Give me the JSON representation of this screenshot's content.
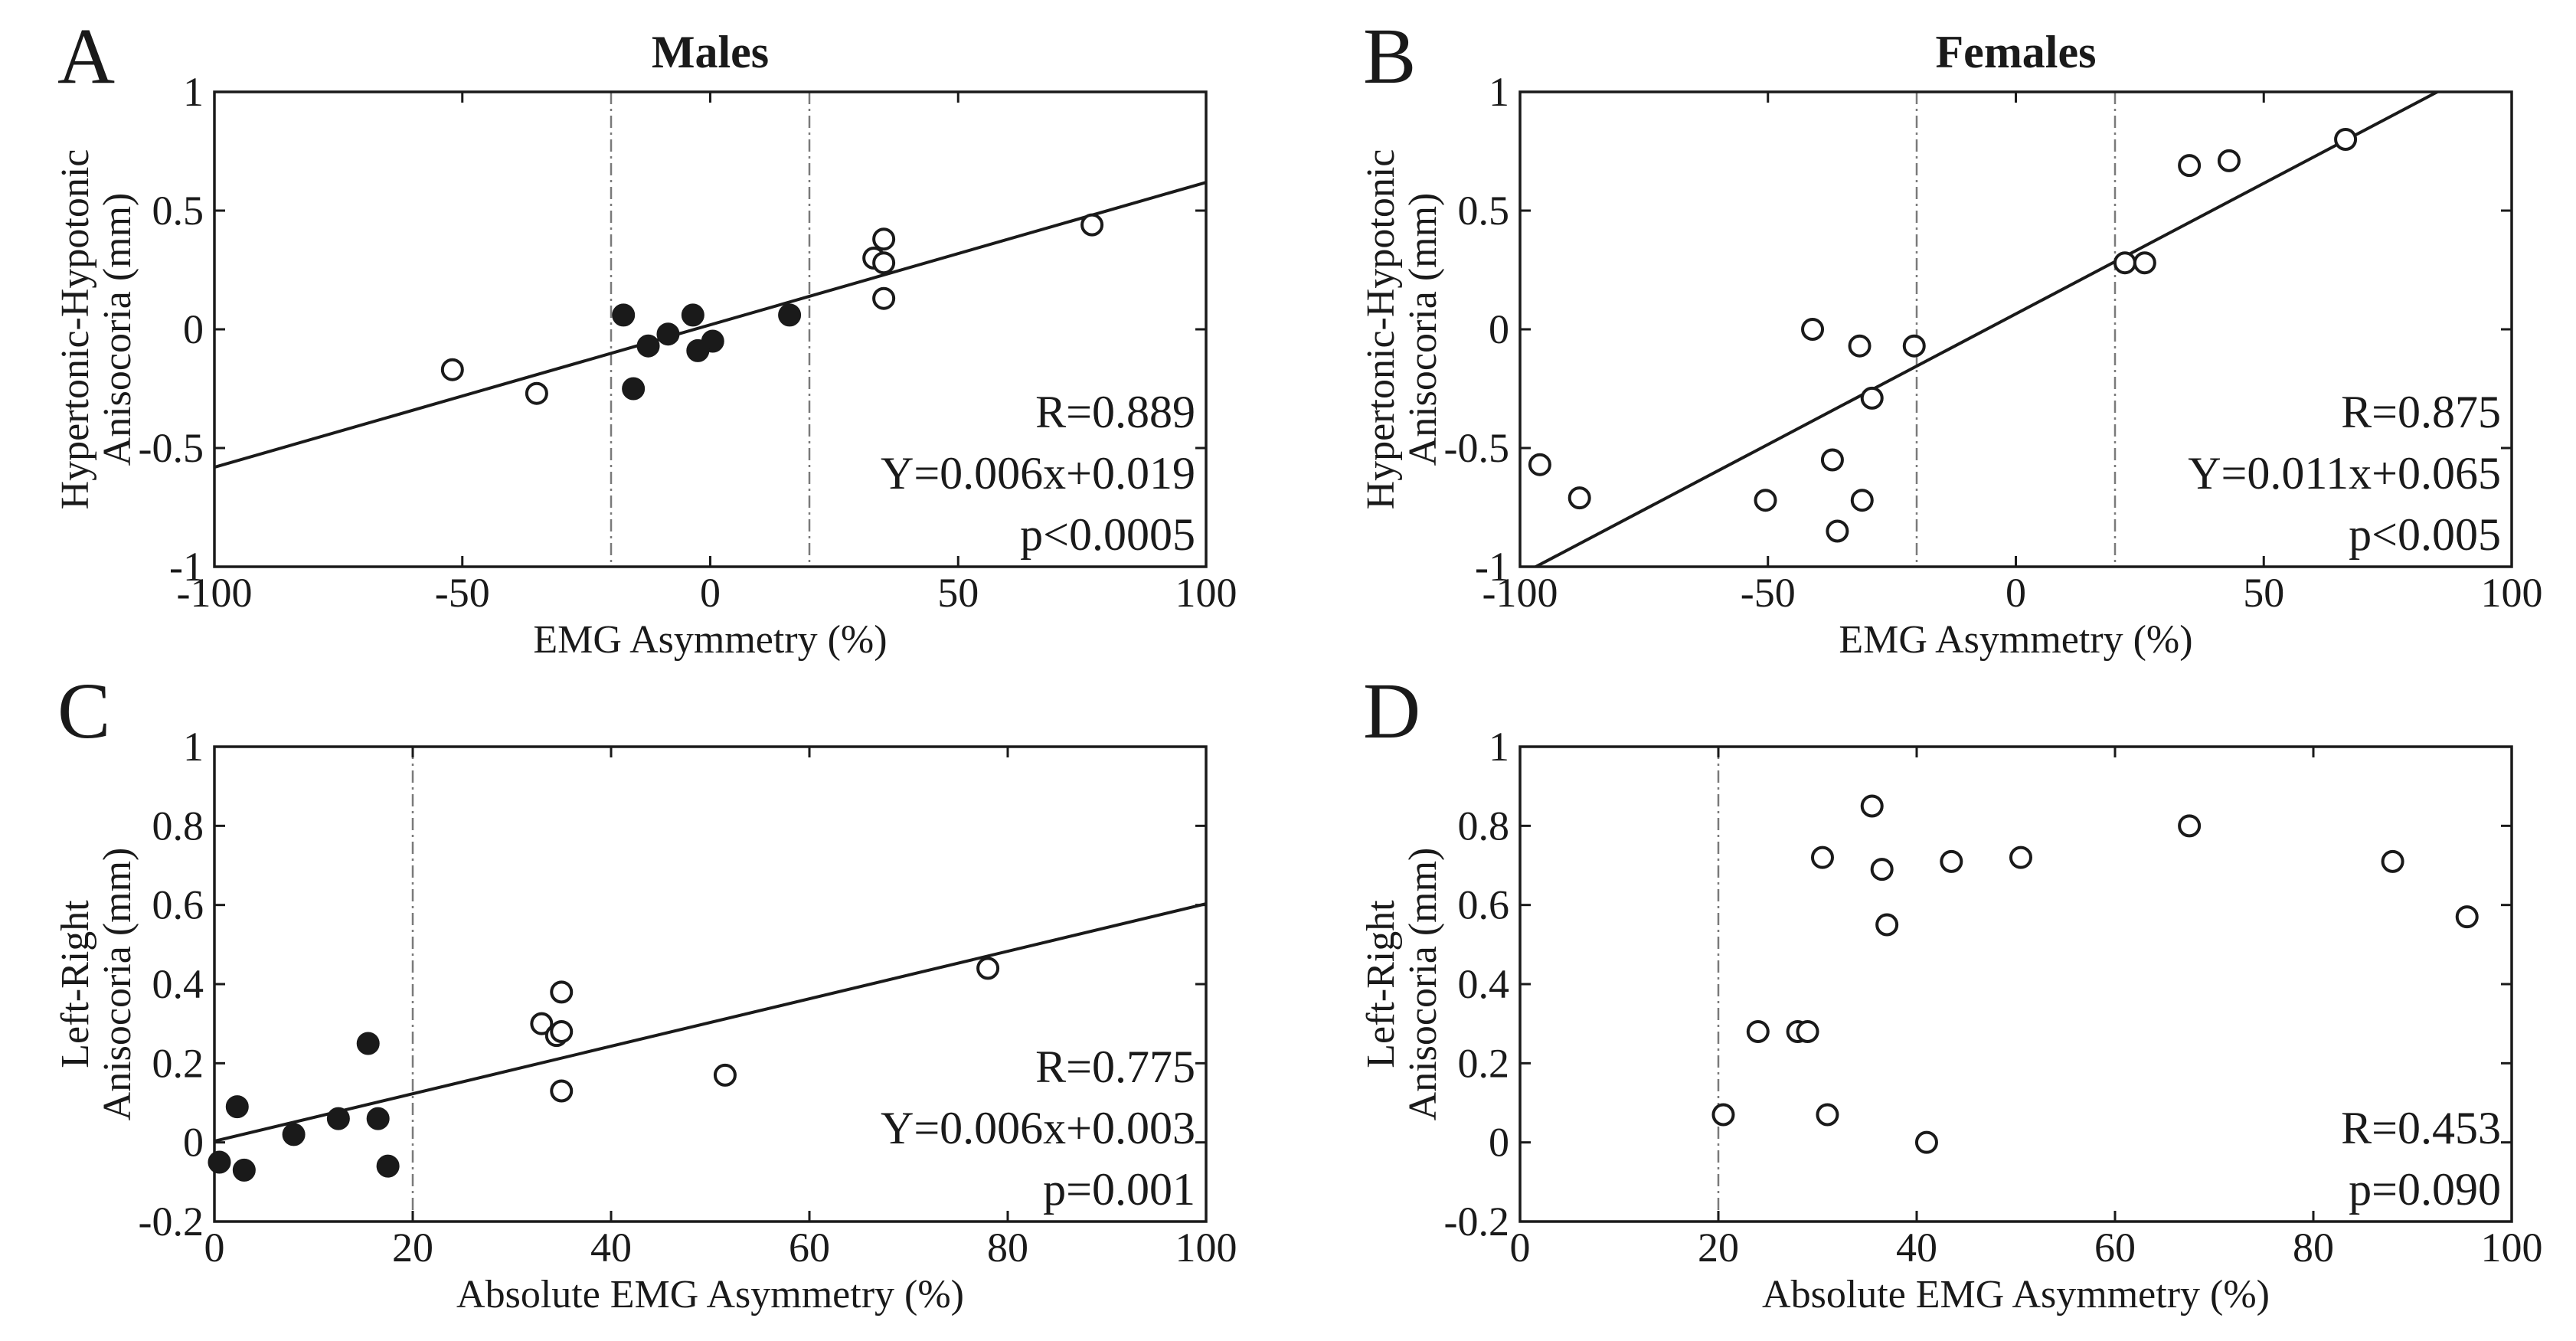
{
  "chart_data": [
    {
      "id": "A",
      "type": "scatter",
      "letter": "A",
      "title": "Males",
      "xlabel": "EMG Asymmetry (%)",
      "ylabel": [
        "Hypertonic-Hypotonic",
        "Anisocoria (mm)"
      ],
      "xlim": [
        -100,
        100
      ],
      "ylim": [
        -1,
        1
      ],
      "xticks": [
        -100,
        -50,
        0,
        50,
        100
      ],
      "xtick_labels": [
        "-100",
        "-50",
        "0",
        "50",
        "100"
      ],
      "yticks": [
        -1,
        -0.5,
        0,
        0.5,
        1
      ],
      "ytick_labels": [
        "-1",
        "-0.5",
        "0",
        "0.5",
        "1"
      ],
      "threshold_lines_x": [
        -20,
        20
      ],
      "fit": {
        "slope": 0.006,
        "intercept": 0.019
      },
      "stats": [
        "R=0.889",
        "Y=0.006x+0.019",
        "p<0.0005"
      ],
      "series": [
        {
          "name": "filled",
          "marker": "filled",
          "points": [
            [
              -17.5,
              0.06
            ],
            [
              -15.5,
              -0.25
            ],
            [
              -12.5,
              -0.07
            ],
            [
              -8.5,
              -0.02
            ],
            [
              -3.5,
              0.06
            ],
            [
              -2.5,
              -0.09
            ],
            [
              0.5,
              -0.05
            ],
            [
              16,
              0.06
            ]
          ]
        },
        {
          "name": "open",
          "marker": "open",
          "points": [
            [
              -52,
              -0.17
            ],
            [
              -35,
              -0.27
            ],
            [
              33,
              0.3
            ],
            [
              35,
              0.38
            ],
            [
              35,
              0.28
            ],
            [
              35,
              0.13
            ],
            [
              77,
              0.44
            ]
          ]
        }
      ]
    },
    {
      "id": "B",
      "type": "scatter",
      "letter": "B",
      "title": "Females",
      "xlabel": "EMG Asymmetry (%)",
      "ylabel": [
        "Hypertonic-Hypotonic",
        "Anisocoria (mm)"
      ],
      "xlim": [
        -100,
        100
      ],
      "ylim": [
        -1,
        1
      ],
      "xticks": [
        -100,
        -50,
        0,
        50,
        100
      ],
      "xtick_labels": [
        "-100",
        "-50",
        "0",
        "50",
        "100"
      ],
      "yticks": [
        -1,
        -0.5,
        0,
        0.5,
        1
      ],
      "ytick_labels": [
        "-1",
        "-0.5",
        "0",
        "0.5",
        "1"
      ],
      "threshold_lines_x": [
        -20,
        20
      ],
      "fit": {
        "slope": 0.011,
        "intercept": 0.065
      },
      "stats": [
        "R=0.875",
        "Y=0.011x+0.065",
        "p<0.005"
      ],
      "series": [
        {
          "name": "open",
          "marker": "open",
          "points": [
            [
              -96,
              -0.57
            ],
            [
              -88,
              -0.71
            ],
            [
              -50.5,
              -0.72
            ],
            [
              -41,
              0.0
            ],
            [
              -37,
              -0.55
            ],
            [
              -36,
              -0.85
            ],
            [
              -31.5,
              -0.07
            ],
            [
              -31,
              -0.72
            ],
            [
              -29,
              -0.29
            ],
            [
              -20.5,
              -0.07
            ],
            [
              22,
              0.28
            ],
            [
              26,
              0.28
            ],
            [
              35,
              0.69
            ],
            [
              43,
              0.71
            ],
            [
              66.5,
              0.8
            ]
          ]
        }
      ]
    },
    {
      "id": "C",
      "type": "scatter",
      "letter": "C",
      "title": "",
      "xlabel": "Absolute EMG Asymmetry (%)",
      "ylabel": [
        "Left-Right",
        "Anisocoria (mm)"
      ],
      "xlim": [
        0,
        100
      ],
      "ylim": [
        -0.2,
        1
      ],
      "xticks": [
        0,
        20,
        40,
        60,
        80,
        100
      ],
      "xtick_labels": [
        "0",
        "20",
        "40",
        "60",
        "80",
        "100"
      ],
      "yticks": [
        -0.2,
        0,
        0.2,
        0.4,
        0.6,
        0.8,
        1
      ],
      "ytick_labels": [
        "-0.2",
        "0",
        "0.2",
        "0.4",
        "0.6",
        "0.8",
        "1"
      ],
      "threshold_lines_x": [
        20
      ],
      "fit": {
        "slope": 0.006,
        "intercept": 0.003
      },
      "stats": [
        "R=0.775",
        "Y=0.006x+0.003",
        "p=0.001"
      ],
      "series": [
        {
          "name": "filled",
          "marker": "filled",
          "points": [
            [
              0.5,
              -0.05
            ],
            [
              2.3,
              0.09
            ],
            [
              3,
              -0.07
            ],
            [
              8,
              0.02
            ],
            [
              12.5,
              0.06
            ],
            [
              15.5,
              0.25
            ],
            [
              16.5,
              0.06
            ],
            [
              17.5,
              -0.06
            ]
          ]
        },
        {
          "name": "open",
          "marker": "open",
          "points": [
            [
              33,
              0.3
            ],
            [
              34.5,
              0.27
            ],
            [
              35,
              0.28
            ],
            [
              35,
              0.38
            ],
            [
              35,
              0.13
            ],
            [
              51.5,
              0.17
            ],
            [
              78,
              0.44
            ]
          ]
        }
      ]
    },
    {
      "id": "D",
      "type": "scatter",
      "letter": "D",
      "title": "",
      "xlabel": "Absolute EMG Asymmetry (%)",
      "ylabel": [
        "Left-Right",
        "Anisocoria (mm)"
      ],
      "xlim": [
        0,
        100
      ],
      "ylim": [
        -0.2,
        1
      ],
      "xticks": [
        0,
        20,
        40,
        60,
        80,
        100
      ],
      "xtick_labels": [
        "0",
        "20",
        "40",
        "60",
        "80",
        "100"
      ],
      "yticks": [
        -0.2,
        0,
        0.2,
        0.4,
        0.6,
        0.8,
        1
      ],
      "ytick_labels": [
        "-0.2",
        "0",
        "0.2",
        "0.4",
        "0.6",
        "0.8",
        "1"
      ],
      "threshold_lines_x": [
        20
      ],
      "fit": null,
      "stats": [
        "R=0.453",
        "p=0.090"
      ],
      "series": [
        {
          "name": "open",
          "marker": "open",
          "points": [
            [
              20.5,
              0.07
            ],
            [
              24,
              0.28
            ],
            [
              28,
              0.28
            ],
            [
              29,
              0.28
            ],
            [
              30.5,
              0.72
            ],
            [
              31,
              0.07
            ],
            [
              35.5,
              0.85
            ],
            [
              36.5,
              0.69
            ],
            [
              37,
              0.55
            ],
            [
              43.5,
              0.71
            ],
            [
              41,
              0.0
            ],
            [
              50.5,
              0.72
            ],
            [
              67.5,
              0.8
            ],
            [
              88,
              0.71
            ],
            [
              95.5,
              0.57
            ]
          ]
        }
      ]
    }
  ]
}
